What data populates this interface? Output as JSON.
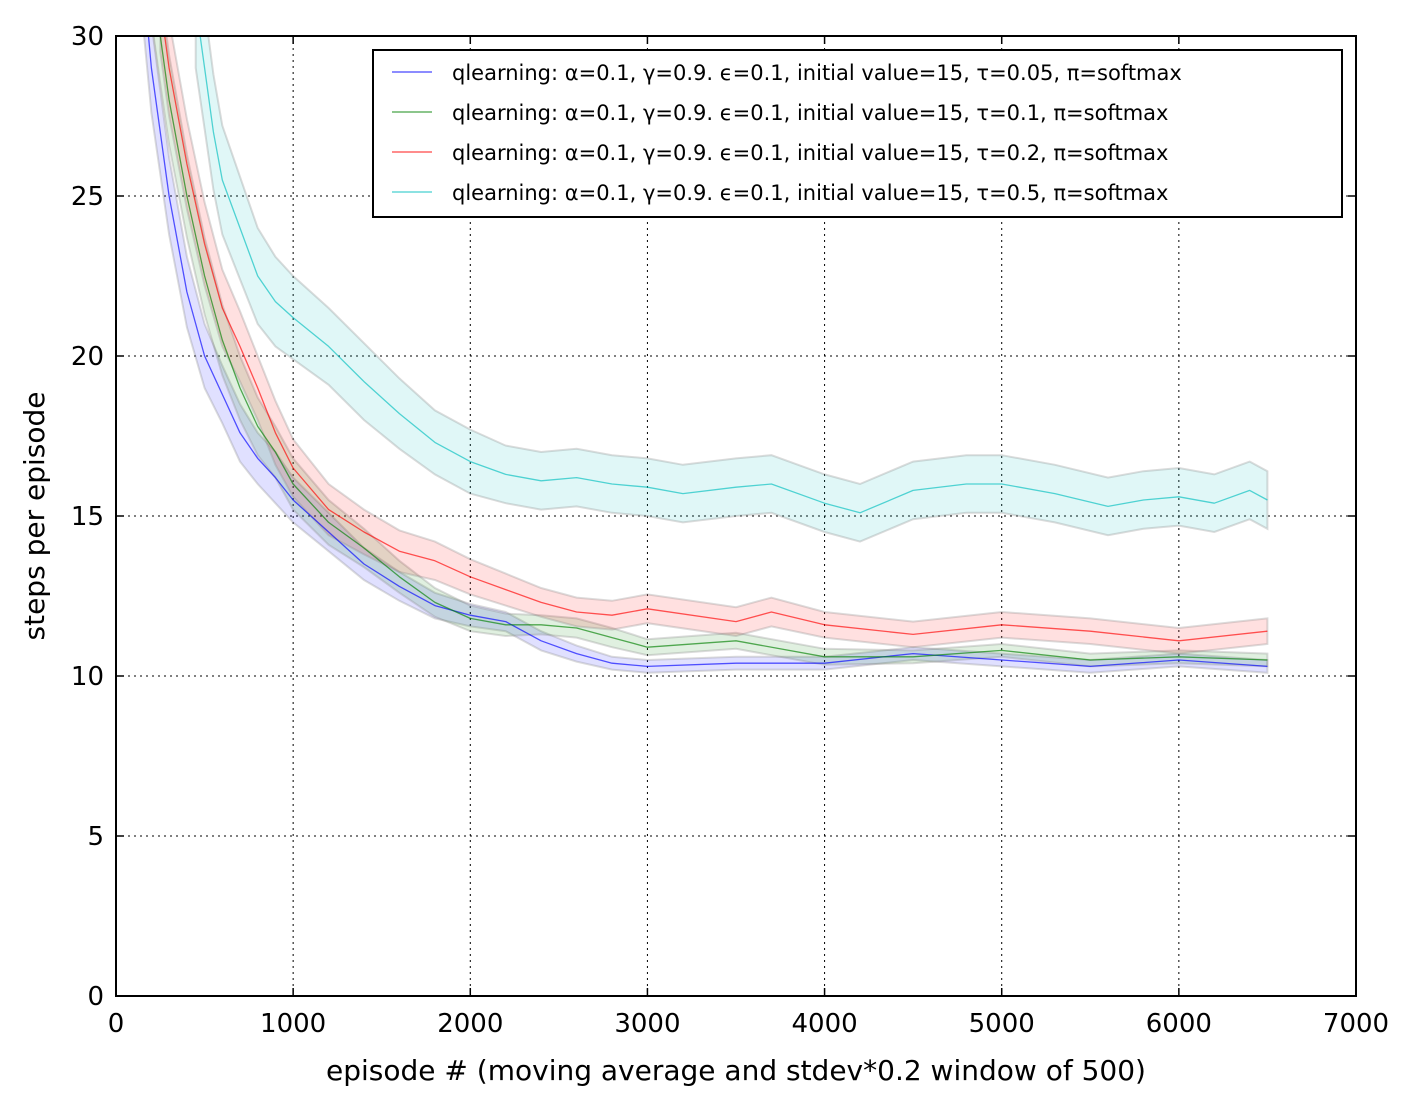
{
  "chart_data": {
    "type": "line",
    "xlabel": "episode # (moving average and stdev*0.2 window of 500)",
    "ylabel": "steps per episode",
    "xlim": [
      0,
      7000
    ],
    "ylim": [
      0,
      30
    ],
    "xticks": [
      0,
      1000,
      2000,
      3000,
      4000,
      5000,
      6000,
      7000
    ],
    "yticks": [
      0,
      5,
      10,
      15,
      20,
      25,
      30
    ],
    "xtick_labels": [
      "0",
      "1000",
      "2000",
      "3000",
      "4000",
      "5000",
      "6000",
      "7000"
    ],
    "ytick_labels": [
      "0",
      "5",
      "10",
      "15",
      "20",
      "25",
      "30"
    ],
    "grid": true,
    "legend_position": "top-right",
    "series": [
      {
        "name": "qlearning: α=0.1, γ=0.9. ϵ=0.1, initial value=15, τ=0.05, π=softmax",
        "color": "#0000ff",
        "x": [
          150,
          200,
          300,
          400,
          500,
          600,
          700,
          800,
          900,
          1000,
          1200,
          1400,
          1600,
          1800,
          2000,
          2200,
          2400,
          2600,
          2800,
          3000,
          3500,
          4000,
          4500,
          5000,
          5500,
          6000,
          6500
        ],
        "y": [
          32,
          29,
          25,
          22,
          20,
          18.8,
          17.6,
          16.8,
          16.2,
          15.5,
          14.5,
          13.5,
          12.8,
          12.2,
          11.9,
          11.7,
          11.1,
          10.7,
          10.4,
          10.3,
          10.4,
          10.4,
          10.7,
          10.5,
          10.3,
          10.5,
          10.3
        ],
        "band": [
          1.5,
          1.4,
          1.2,
          1.1,
          1.0,
          0.9,
          0.9,
          0.8,
          0.8,
          0.7,
          0.6,
          0.5,
          0.45,
          0.4,
          0.35,
          0.3,
          0.3,
          0.25,
          0.2,
          0.2,
          0.2,
          0.2,
          0.2,
          0.2,
          0.2,
          0.2,
          0.2
        ]
      },
      {
        "name": "qlearning: α=0.1, γ=0.9. ϵ=0.1, initial value=15, τ=0.1, π=softmax",
        "color": "#008000",
        "x": [
          200,
          250,
          300,
          400,
          500,
          600,
          700,
          800,
          900,
          1000,
          1200,
          1400,
          1600,
          1800,
          2000,
          2200,
          2400,
          2600,
          2800,
          3000,
          3500,
          4000,
          4500,
          5000,
          5500,
          6000,
          6500
        ],
        "y": [
          32,
          30,
          28,
          25,
          22.5,
          20.5,
          19,
          17.8,
          17,
          16,
          14.8,
          14,
          13.1,
          12.3,
          11.8,
          11.6,
          11.6,
          11.5,
          11.2,
          10.9,
          11.1,
          10.6,
          10.6,
          10.8,
          10.5,
          10.6,
          10.5
        ],
        "band": [
          1.5,
          1.5,
          1.4,
          1.3,
          1.2,
          1.1,
          1.0,
          0.9,
          0.8,
          0.8,
          0.7,
          0.6,
          0.5,
          0.45,
          0.4,
          0.35,
          0.3,
          0.3,
          0.3,
          0.25,
          0.25,
          0.25,
          0.2,
          0.2,
          0.2,
          0.2,
          0.2
        ]
      },
      {
        "name": "qlearning: α=0.1, γ=0.9. ϵ=0.1, initial value=15, τ=0.2, π=softmax",
        "color": "#ff0000",
        "x": [
          250,
          300,
          400,
          500,
          600,
          700,
          800,
          900,
          1000,
          1200,
          1400,
          1600,
          1800,
          2000,
          2200,
          2400,
          2600,
          2800,
          3000,
          3500,
          3700,
          4000,
          4500,
          5000,
          5500,
          6000,
          6500
        ],
        "y": [
          31,
          29,
          26,
          23.5,
          21.5,
          20.3,
          19,
          17.6,
          16.5,
          15.2,
          14.5,
          13.9,
          13.6,
          13.1,
          12.7,
          12.3,
          12.0,
          11.9,
          12.1,
          11.7,
          12.0,
          11.6,
          11.3,
          11.6,
          11.4,
          11.1,
          11.4
        ],
        "band": [
          1.5,
          1.5,
          1.4,
          1.3,
          1.2,
          1.1,
          1.0,
          1.0,
          0.9,
          0.8,
          0.7,
          0.65,
          0.6,
          0.55,
          0.5,
          0.45,
          0.45,
          0.45,
          0.45,
          0.45,
          0.45,
          0.4,
          0.4,
          0.4,
          0.4,
          0.4,
          0.4
        ]
      },
      {
        "name": "qlearning: α=0.1, γ=0.9. ϵ=0.1, initial value=15, τ=0.5, π=softmax",
        "color": "#00bfbf",
        "x": [
          450,
          500,
          550,
          600,
          700,
          800,
          900,
          1000,
          1200,
          1400,
          1600,
          1800,
          2000,
          2200,
          2400,
          2600,
          2800,
          3000,
          3200,
          3500,
          3700,
          4000,
          4200,
          4500,
          4800,
          5000,
          5300,
          5600,
          5800,
          6000,
          6200,
          6400,
          6500
        ],
        "y": [
          31,
          29,
          27,
          25.5,
          24,
          22.5,
          21.7,
          21.2,
          20.3,
          19.2,
          18.2,
          17.3,
          16.7,
          16.3,
          16.1,
          16.2,
          16.0,
          15.9,
          15.7,
          15.9,
          16.0,
          15.4,
          15.1,
          15.8,
          16.0,
          16.0,
          15.7,
          15.3,
          15.5,
          15.6,
          15.4,
          15.8,
          15.5
        ],
        "band": [
          2.0,
          1.9,
          1.8,
          1.7,
          1.6,
          1.5,
          1.4,
          1.3,
          1.2,
          1.2,
          1.1,
          1.0,
          1.0,
          0.9,
          0.9,
          0.9,
          0.9,
          0.9,
          0.9,
          0.9,
          0.9,
          0.9,
          0.9,
          0.9,
          0.9,
          0.9,
          0.9,
          0.9,
          0.9,
          0.9,
          0.9,
          0.9,
          0.9
        ]
      }
    ]
  }
}
